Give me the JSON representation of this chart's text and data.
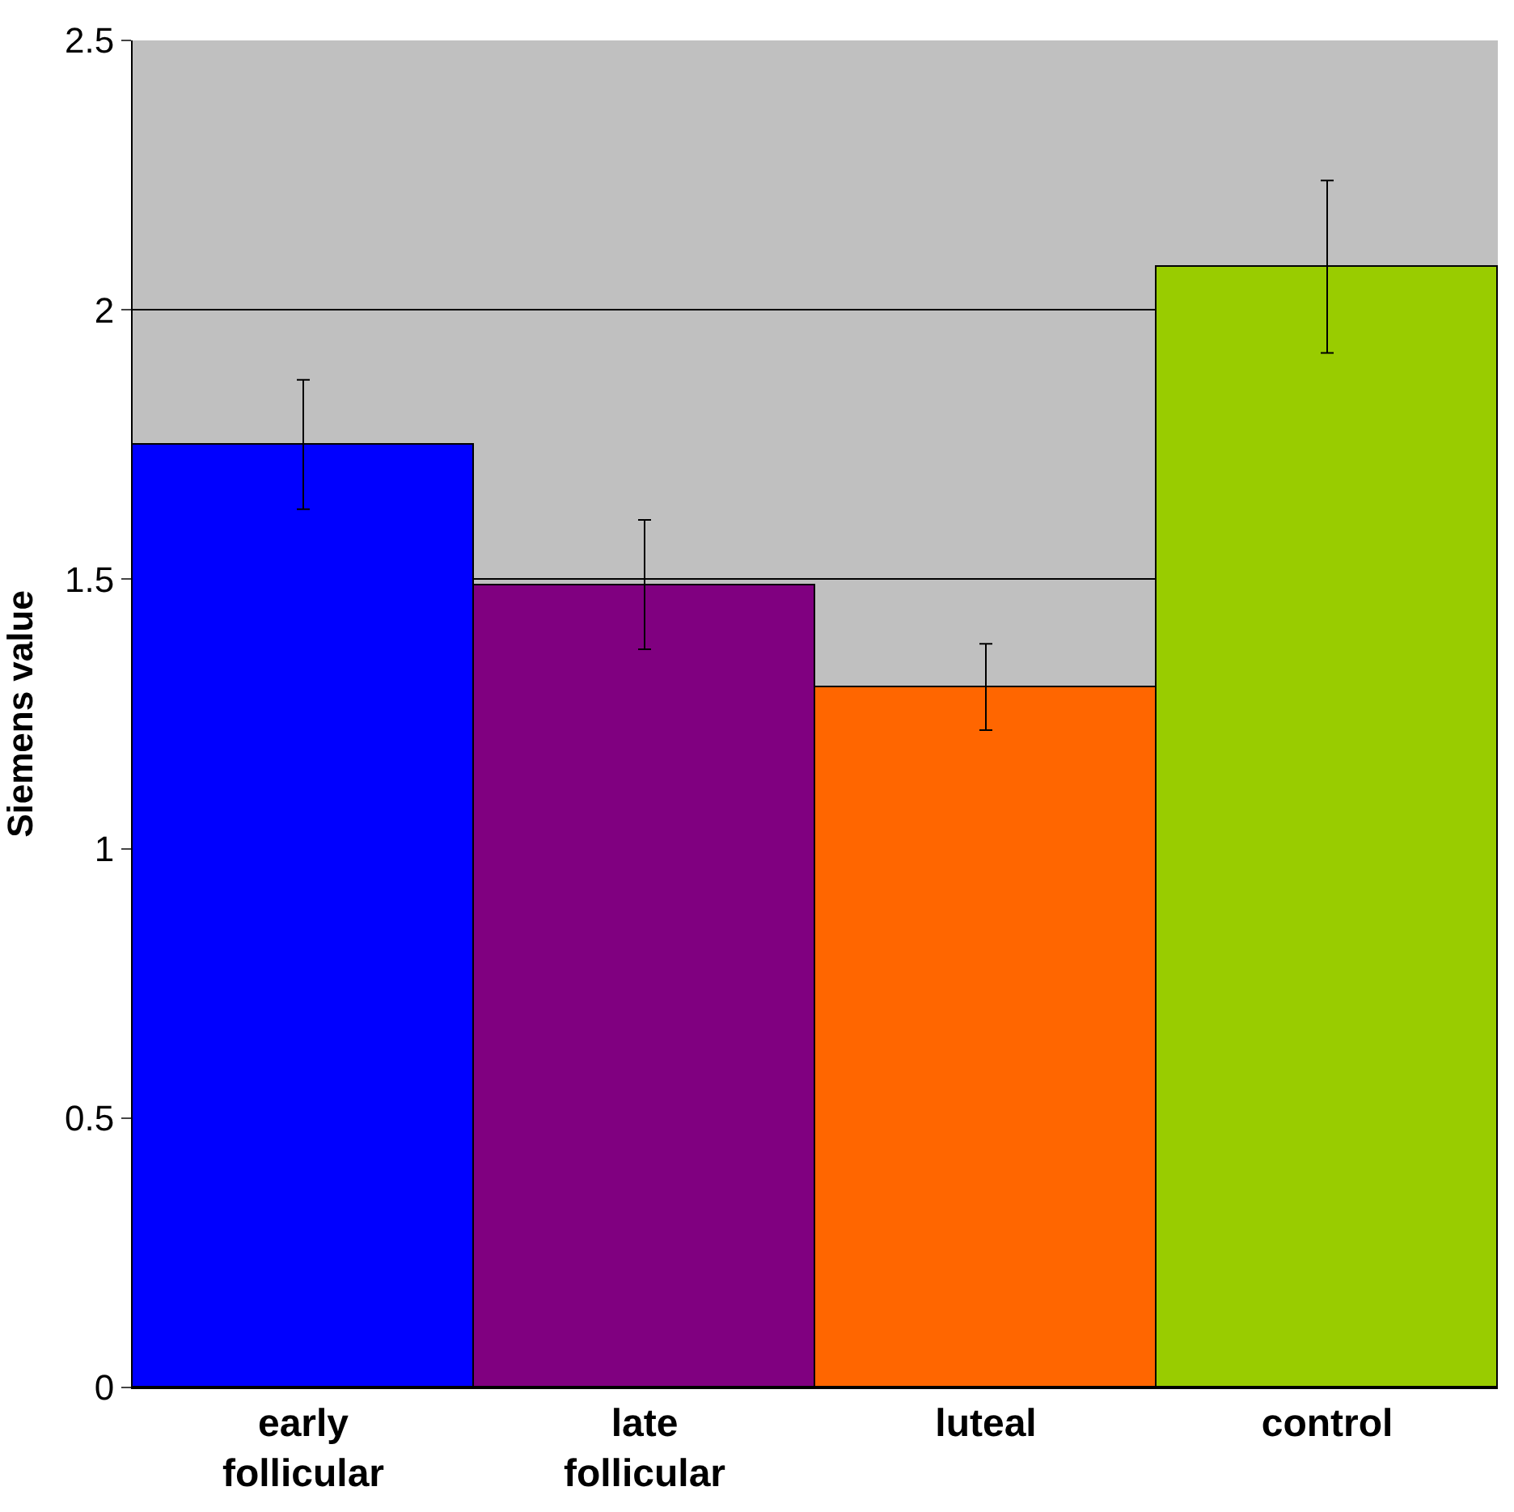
{
  "chart_data": {
    "type": "bar",
    "ylabel": "Siemens value",
    "categories": [
      "early\nfollicular",
      "late\nfollicular",
      "luteal",
      "control"
    ],
    "values": [
      1.75,
      1.49,
      1.3,
      2.08
    ],
    "colors": [
      "#0000ff",
      "#800080",
      "#ff6600",
      "#99cc00"
    ],
    "errors": [
      0.12,
      0.12,
      0.08,
      0.16
    ],
    "ylim": [
      0,
      2.5
    ],
    "yticks": [
      0,
      0.5,
      1,
      1.5,
      2,
      2.5
    ],
    "grid": "y",
    "legend": false
  }
}
